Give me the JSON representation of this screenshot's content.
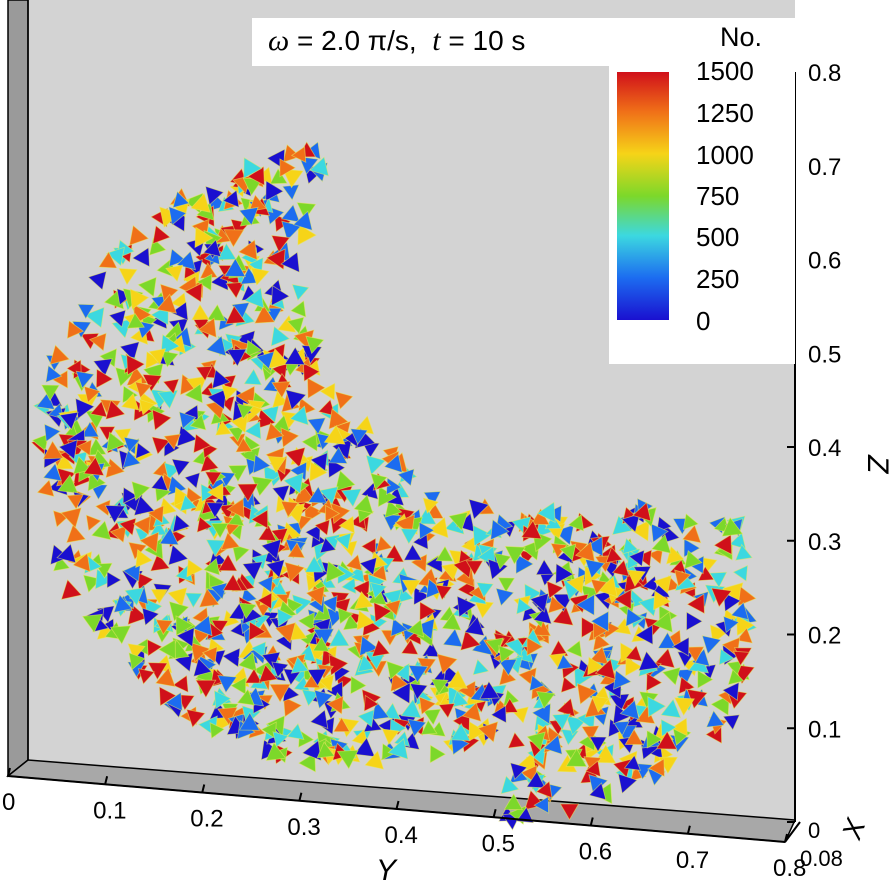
{
  "title": {
    "omega_symbol": "ω",
    "omega_rest": " = 2.0 π/s,  ",
    "t_symbol": "t",
    "t_rest": " = 10 s"
  },
  "legend": {
    "title": "No.",
    "ticks": [
      "1500",
      "1250",
      "1000",
      "750",
      "500",
      "250",
      "0"
    ],
    "colors": [
      "#d0101a",
      "#f07018",
      "#f6d418",
      "#7cd82a",
      "#3cd8e0",
      "#1c6cf0",
      "#1a10d0"
    ]
  },
  "chart_data": {
    "type": "scatter",
    "z_axis": {
      "label": "Z",
      "range": [
        0,
        0.8
      ],
      "ticks": [
        "0",
        "0.1",
        "0.2",
        "0.3",
        "0.4",
        "0.5",
        "0.6",
        "0.7",
        "0.8"
      ]
    },
    "y_axis": {
      "label": "Y",
      "range": [
        0,
        0.8
      ],
      "ticks": [
        "0",
        "0.1",
        "0.2",
        "0.3",
        "0.4",
        "0.5",
        "0.6",
        "0.7",
        "0.8"
      ]
    },
    "x_axis": {
      "label": "X",
      "range": [
        0,
        0.08
      ],
      "ticks": [
        "0",
        "0.08"
      ]
    },
    "color_variable": "No.",
    "color_range": [
      0,
      1500
    ],
    "particle_region": {
      "shape": "crescent",
      "outer_center_y": 0.34,
      "outer_center_z": 0.39,
      "outer_radius": 0.33,
      "inner_center_y": 0.56,
      "inner_center_z": 0.6,
      "inner_radius": 0.27,
      "tail_end_y": 0.73,
      "tail_end_z": 0.27
    },
    "background_color": "#d3d3d3"
  }
}
